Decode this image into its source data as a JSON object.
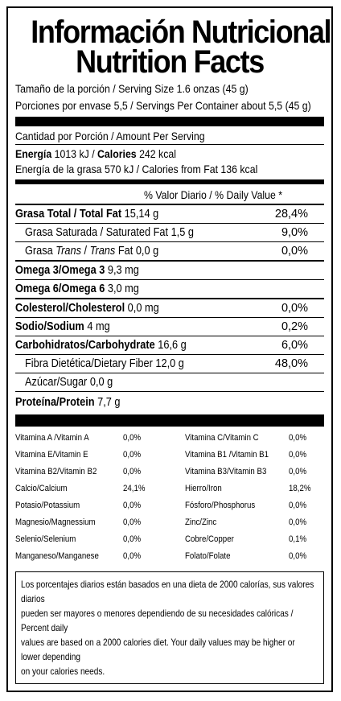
{
  "title_es": "Información Nutricional",
  "title_en": "Nutrition Facts",
  "serving_size": "Tamaño de la porción  / Serving Size 1.6 onzas (45 g)",
  "servings": "Porciones por envase  5,5 / Servings Per Container about 5,5 (45 g)",
  "amount_per_serving": "Cantidad por Porción / Amount Per Serving",
  "energy_label": "Energía",
  "energy_kj": " 1013 kJ / ",
  "calories_label": "Calories",
  "calories_value": " 242 kcal",
  "fat_energy": "Energía de la grasa 570 kJ / Calories from Fat 136 kcal",
  "dv_header": "% Valor Diario / % Daily Value *",
  "nutrients": {
    "total_fat": {
      "label": "Grasa Total / Total Fat",
      "amount": " 15,14 g",
      "dv": "28,4%"
    },
    "sat_fat": {
      "label": "Grasa Saturada / Saturated Fat",
      "amount": "  1,5 g",
      "dv": "9,0%"
    },
    "trans_fat": {
      "label_a": "Grasa ",
      "label_b": "Trans",
      "label_c": " / ",
      "label_d": "Trans",
      "label_e": " Fat 0,0 g",
      "dv": "0,0%"
    },
    "omega3": {
      "label": "Omega 3/Omega 3",
      "amount": "  9,3 mg"
    },
    "omega6": {
      "label": "Omega 6/Omega 6",
      "amount": "  3,0 mg"
    },
    "cholesterol": {
      "label": "Colesterol/Cholesterol",
      "amount": "  0,0 mg",
      "dv": "0,0%"
    },
    "sodium": {
      "label": "Sodio/Sodium",
      "amount": "   4 mg",
      "dv": "0,2%"
    },
    "carbs": {
      "label": "Carbohidratos/Carbohydrate",
      "amount": "  16,6 g",
      "dv": "6,0%"
    },
    "fiber": {
      "label": "Fibra Dietética/Dietary Fiber  12,0 g",
      "dv": "48,0%"
    },
    "sugar": {
      "label": "Azúcar/Sugar  0,0 g"
    },
    "protein": {
      "label": "Proteína/Protein",
      "amount": "  7,7 g"
    }
  },
  "vitamins": [
    {
      "l1": "Vitamina A /Vitamin A",
      "v1": "0,0%",
      "l2": "Vitamina C/Vitamin C",
      "v2": "0,0%"
    },
    {
      "l1": "Vitamina E/Vitamin E",
      "v1": "0,0%",
      "l2": "Vitamina B1 /Vitamin B1",
      "v2": "0,0%"
    },
    {
      "l1": "Vitamina B2/Vitamin B2",
      "v1": "0,0%",
      "l2": "Vitamina B3/Vitamin B3",
      "v2": "0,0%"
    },
    {
      "l1": "Calcio/Calcium",
      "v1": "24,1%",
      "l2": "Hierro/Iron",
      "v2": "18,2%"
    },
    {
      "l1": "Potasio/Potassium",
      "v1": "0,0%",
      "l2": "Fósforo/Phosphorus",
      "v2": "0,0%"
    },
    {
      "l1": "Magnesio/Magnessium",
      "v1": "0,0%",
      "l2": "Zinc/Zinc",
      "v2": "0,0%"
    },
    {
      "l1": "Selenio/Selenium",
      "v1": "0,0%",
      "l2": "Cobre/Copper",
      "v2": "0,1%"
    },
    {
      "l1": "Manganeso/Manganese",
      "v1": "0,0%",
      "l2": "Folato/Folate",
      "v2": "0,0%"
    }
  ],
  "footnote": [
    "Los porcentajes diarios están basados en una dieta de 2000 calorías, sus valores diarios",
    "pueden ser mayores o menores dependiendo de su necesidades calóricas / Percent daily",
    "values are based on a 2000 calories diet. Your daily values may be higher or lower depending",
    "on your calories needs."
  ]
}
